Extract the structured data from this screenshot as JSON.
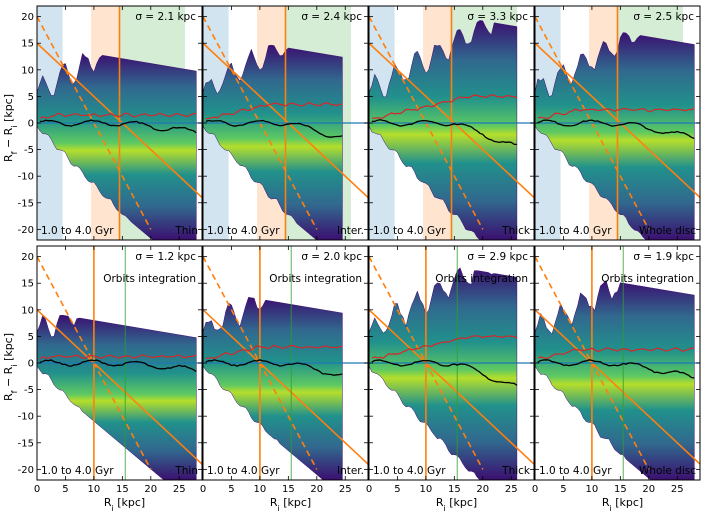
{
  "chart_data": {
    "type": "heatmap",
    "xlabel": "R_i [kpc]",
    "ylabel": "R_f − R_i [kpc]",
    "xlim": [
      0,
      29
    ],
    "ylim": [
      -22,
      22
    ],
    "x_ticks": [
      0,
      5,
      10,
      15,
      20,
      25
    ],
    "y_ticks": [
      -20,
      -15,
      -10,
      -5,
      0,
      5,
      10,
      15,
      20
    ],
    "age_range": "1.0 to 4.0 Gyr",
    "orbits_label": "Orbits integration",
    "shaded_bands": [
      {
        "color": "#1f77b4",
        "x": [
          0,
          4.5
        ]
      },
      {
        "color": "#ff7f0e",
        "x": [
          9.5,
          14.5
        ]
      },
      {
        "color": "#2ca02c",
        "x": [
          14.5,
          26
        ]
      }
    ],
    "colors": {
      "mean": "#000000",
      "dispersion": "#d62728",
      "bounds": "#ff7f0e",
      "zero_line": "#1f77b4",
      "frame": "#000000"
    },
    "panels": [
      {
        "row": "top",
        "label": "Thin",
        "sigma": "σ = 2.1 kpc",
        "xmax": 28,
        "up": 13,
        "down": 12,
        "disp": 1.5
      },
      {
        "row": "top",
        "label": "Inter.",
        "sigma": "σ = 2.4 kpc",
        "xmax": 24.5,
        "up": 15,
        "down": 13,
        "disp": 3.5
      },
      {
        "row": "top",
        "label": "Thick",
        "sigma": "σ = 3.3 kpc",
        "xmax": 26,
        "up": 21,
        "down": 18,
        "disp": 5
      },
      {
        "row": "top",
        "label": "Whole disc",
        "sigma": "σ = 2.5 kpc",
        "xmax": 28,
        "up": 18,
        "down": 14,
        "disp": 2.5
      },
      {
        "row": "bottom",
        "label": "Thin",
        "sigma": "σ = 1.2 kpc",
        "xmax": 28,
        "up": 8,
        "down": 7,
        "disp": 1.2
      },
      {
        "row": "bottom",
        "label": "Inter.",
        "sigma": "σ = 2.0 kpc",
        "xmax": 24.5,
        "up": 12,
        "down": 10,
        "disp": 3
      },
      {
        "row": "bottom",
        "label": "Thick",
        "sigma": "σ = 2.9 kpc",
        "xmax": 26,
        "up": 19,
        "down": 16,
        "disp": 5
      },
      {
        "row": "bottom",
        "label": "Whole disc",
        "sigma": "σ = 1.9 kpc",
        "xmax": 28,
        "up": 16,
        "down": 12,
        "disp": 2.5
      }
    ],
    "reference_lines": {
      "solid_top": [
        [
          0,
          15
        ],
        [
          29,
          -14
        ]
      ],
      "solid_bottom": [
        [
          0,
          10
        ],
        [
          29,
          -19
        ]
      ],
      "dashed": [
        [
          0,
          20
        ],
        [
          20,
          -20
        ]
      ],
      "vertical_top": [
        14.5
      ],
      "vertical_bottom": [
        10
      ]
    }
  }
}
